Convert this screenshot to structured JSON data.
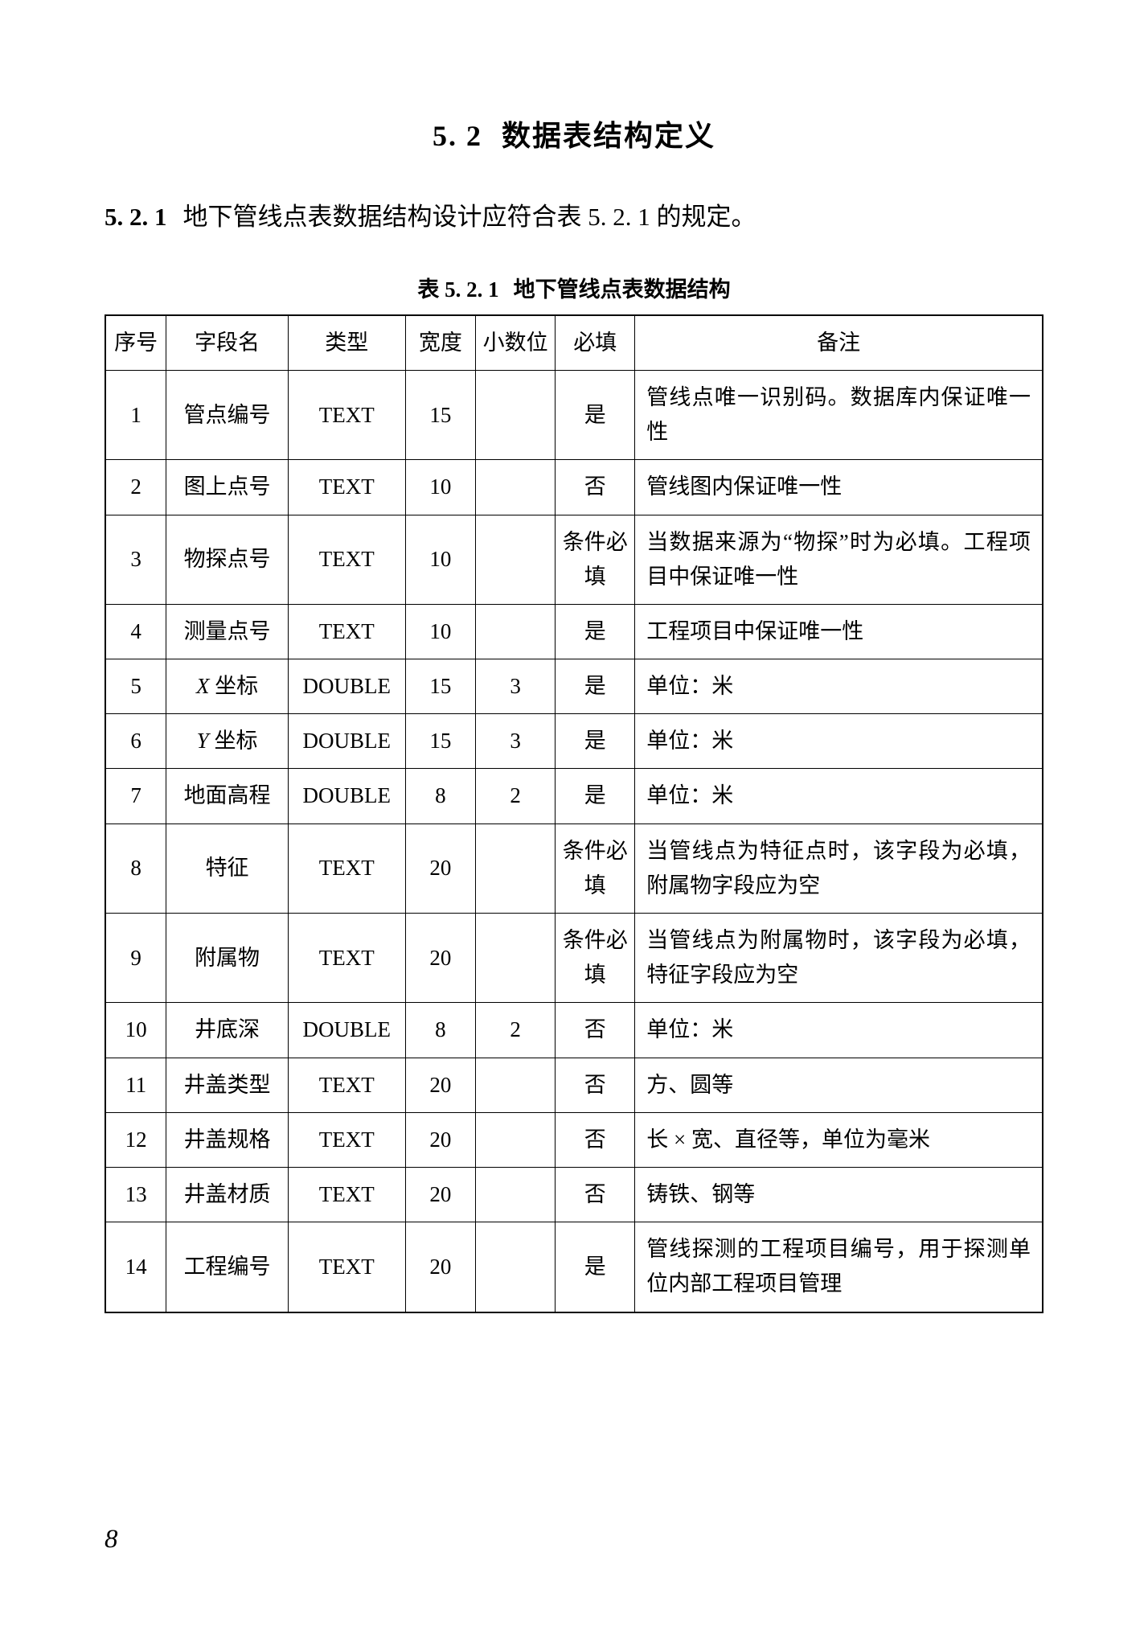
{
  "section": {
    "num": "5. 2",
    "title": "数据表结构定义"
  },
  "subsection": {
    "num": "5. 2. 1",
    "text": "地下管线点表数据结构设计应符合表 5. 2. 1 的规定。"
  },
  "table_caption": {
    "num": "表 5. 2. 1",
    "text": "地下管线点表数据结构"
  },
  "columns": [
    "序号",
    "字段名",
    "类型",
    "宽度",
    "小数位",
    "必填",
    "备注"
  ],
  "rows": [
    {
      "seq": "1",
      "field": "管点编号",
      "type": "TEXT",
      "width": "15",
      "dec": "",
      "req": "是",
      "remarks": "管线点唯一识别码。数据库内保证唯一性"
    },
    {
      "seq": "2",
      "field": "图上点号",
      "type": "TEXT",
      "width": "10",
      "dec": "",
      "req": "否",
      "remarks": "管线图内保证唯一性"
    },
    {
      "seq": "3",
      "field": "物探点号",
      "type": "TEXT",
      "width": "10",
      "dec": "",
      "req": "条件必填",
      "remarks": "当数据来源为“物探”时为必填。工程项目中保证唯一性"
    },
    {
      "seq": "4",
      "field": "测量点号",
      "type": "TEXT",
      "width": "10",
      "dec": "",
      "req": "是",
      "remarks": "工程项目中保证唯一性"
    },
    {
      "seq": "5",
      "field": "X 坐标",
      "field_italic_first": true,
      "type": "DOUBLE",
      "width": "15",
      "dec": "3",
      "req": "是",
      "remarks": "单位：米"
    },
    {
      "seq": "6",
      "field": "Y 坐标",
      "field_italic_first": true,
      "type": "DOUBLE",
      "width": "15",
      "dec": "3",
      "req": "是",
      "remarks": "单位：米"
    },
    {
      "seq": "7",
      "field": "地面高程",
      "type": "DOUBLE",
      "width": "8",
      "dec": "2",
      "req": "是",
      "remarks": "单位：米"
    },
    {
      "seq": "8",
      "field": "特征",
      "type": "TEXT",
      "width": "20",
      "dec": "",
      "req": "条件必填",
      "remarks": "当管线点为特征点时，该字段为必填，附属物字段应为空"
    },
    {
      "seq": "9",
      "field": "附属物",
      "type": "TEXT",
      "width": "20",
      "dec": "",
      "req": "条件必填",
      "remarks": "当管线点为附属物时，该字段为必填，特征字段应为空"
    },
    {
      "seq": "10",
      "field": "井底深",
      "type": "DOUBLE",
      "width": "8",
      "dec": "2",
      "req": "否",
      "remarks": "单位：米"
    },
    {
      "seq": "11",
      "field": "井盖类型",
      "type": "TEXT",
      "width": "20",
      "dec": "",
      "req": "否",
      "remarks": "方、圆等"
    },
    {
      "seq": "12",
      "field": "井盖规格",
      "type": "TEXT",
      "width": "20",
      "dec": "",
      "req": "否",
      "remarks": "长 × 宽、直径等，单位为毫米"
    },
    {
      "seq": "13",
      "field": "井盖材质",
      "type": "TEXT",
      "width": "20",
      "dec": "",
      "req": "否",
      "remarks": "铸铁、钢等"
    },
    {
      "seq": "14",
      "field": "工程编号",
      "type": "TEXT",
      "width": "20",
      "dec": "",
      "req": "是",
      "remarks": "管线探测的工程项目编号，用于探测单位内部工程项目管理"
    }
  ],
  "page_number": "8"
}
